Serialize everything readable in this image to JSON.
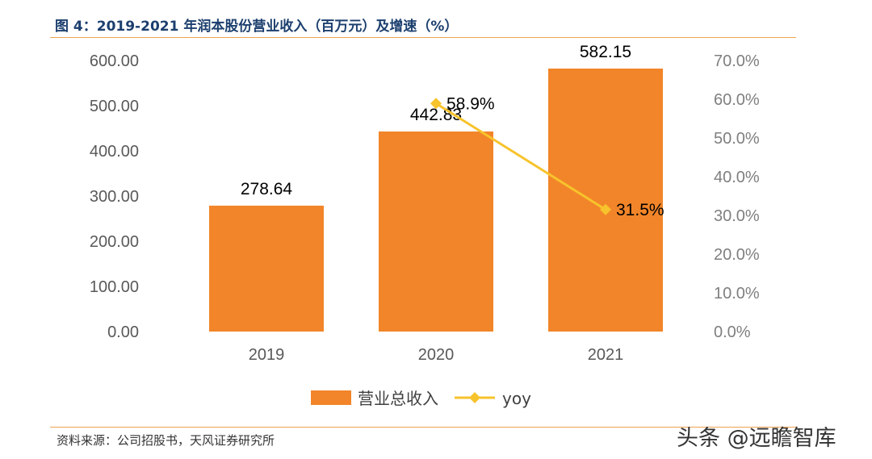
{
  "header": {
    "title": "图 4：2019-2021 年润本股份营业收入（百万元）及增速（%）"
  },
  "footer": {
    "source": "资料来源：公司招股书，天风证券研究所",
    "watermark": "头条 @远瞻智库"
  },
  "chart_data": {
    "type": "bar",
    "title": "图 4：2019-2021 年润本股份营业收入（百万元）及增速（%）",
    "categories": [
      "2019",
      "2020",
      "2021"
    ],
    "series": [
      {
        "name": "营业总收入",
        "type": "bar",
        "axis": "left",
        "values": [
          278.64,
          442.83,
          582.15
        ],
        "labels": [
          "278.64",
          "442.83",
          "582.15"
        ],
        "color": "#f28529"
      },
      {
        "name": "yoy",
        "type": "line",
        "axis": "right",
        "values": [
          null,
          58.9,
          31.5
        ],
        "labels": [
          null,
          "58.9%",
          "31.5%"
        ],
        "color": "#f7c32c"
      }
    ],
    "y_left": {
      "range": [
        0,
        600
      ],
      "ticks": [
        "0.00",
        "100.00",
        "200.00",
        "300.00",
        "400.00",
        "500.00",
        "600.00"
      ]
    },
    "y_right": {
      "range": [
        0,
        70
      ],
      "ticks": [
        "0.0%",
        "10.0%",
        "20.0%",
        "30.0%",
        "40.0%",
        "50.0%",
        "60.0%",
        "70.0%"
      ]
    },
    "grid": false,
    "legend": {
      "position": "bottom",
      "entries": [
        "营业总收入",
        "yoy"
      ]
    }
  }
}
